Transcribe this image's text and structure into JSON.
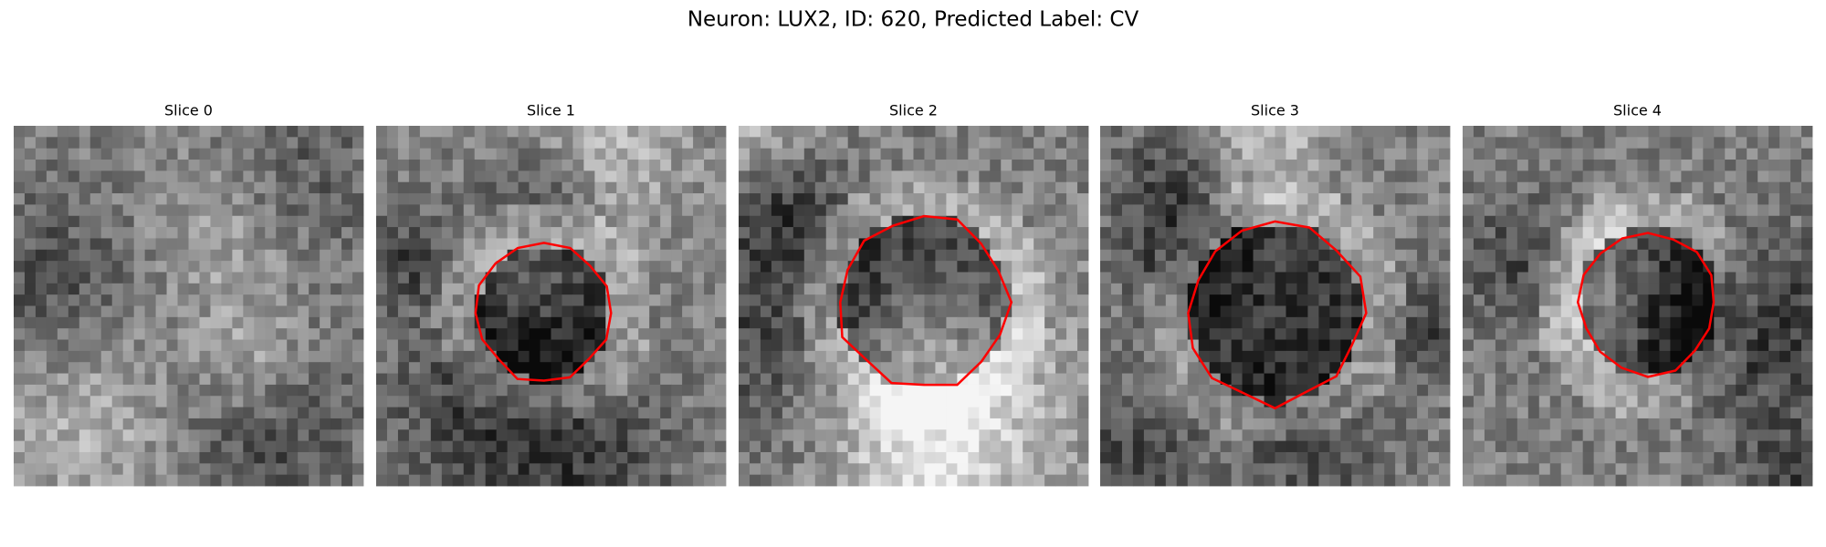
{
  "title": "Neuron: LUX2, ID: 620, Predicted Label: CV",
  "panels": [
    {
      "title": "Slice 0"
    },
    {
      "title": "Slice 1"
    },
    {
      "title": "Slice 2"
    },
    {
      "title": "Slice 3"
    },
    {
      "title": "Slice 4"
    }
  ]
}
